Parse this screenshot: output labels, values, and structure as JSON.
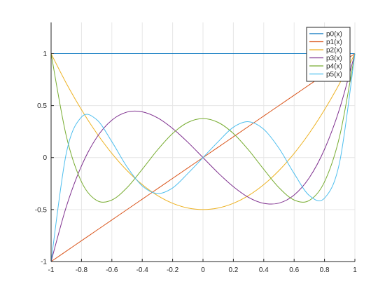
{
  "chart_data": {
    "type": "line",
    "title": "",
    "xlabel": "",
    "ylabel": "",
    "xlim": [
      -1,
      1
    ],
    "ylim": [
      -1,
      1.3
    ],
    "grid": true,
    "legend_position": "top-right",
    "xticks": [
      -1,
      -0.8,
      -0.6,
      -0.4,
      -0.2,
      0,
      0.2,
      0.4,
      0.6,
      0.8,
      1
    ],
    "xtick_labels": [
      "-1",
      "-0.8",
      "-0.6",
      "-0.4",
      "-0.2",
      "0",
      "0.2",
      "0.4",
      "0.6",
      "0.8",
      "1"
    ],
    "yticks": [
      -1,
      -0.5,
      0,
      0.5,
      1
    ],
    "ytick_labels": [
      "-1",
      "-0.5",
      "0",
      "0.5",
      "1"
    ],
    "x": [
      -1,
      -0.9,
      -0.8,
      -0.7,
      -0.6,
      -0.5,
      -0.4,
      -0.3,
      -0.2,
      -0.1,
      0,
      0.1,
      0.2,
      0.3,
      0.4,
      0.5,
      0.6,
      0.7,
      0.8,
      0.9,
      1
    ],
    "series": [
      {
        "name": "p0(x)",
        "color": "#0072BD",
        "values": [
          1,
          1,
          1,
          1,
          1,
          1,
          1,
          1,
          1,
          1,
          1,
          1,
          1,
          1,
          1,
          1,
          1,
          1,
          1,
          1,
          1
        ]
      },
      {
        "name": "p1(x)",
        "color": "#D95319",
        "values": [
          -1,
          -0.9,
          -0.8,
          -0.7,
          -0.6,
          -0.5,
          -0.4,
          -0.3,
          -0.2,
          -0.1,
          0,
          0.1,
          0.2,
          0.3,
          0.4,
          0.5,
          0.6,
          0.7,
          0.8,
          0.9,
          1
        ]
      },
      {
        "name": "p2(x)",
        "color": "#EDB120",
        "values": [
          1,
          0.715,
          0.46,
          0.235,
          0.04,
          -0.125,
          -0.26,
          -0.365,
          -0.44,
          -0.485,
          -0.5,
          -0.485,
          -0.44,
          -0.365,
          -0.26,
          -0.125,
          0.04,
          0.235,
          0.46,
          0.715,
          1
        ]
      },
      {
        "name": "p3(x)",
        "color": "#7E2F8E",
        "values": [
          -1,
          -0.473,
          -0.08,
          0.193,
          0.36,
          0.438,
          0.44,
          0.383,
          0.28,
          0.148,
          0,
          -0.148,
          -0.28,
          -0.383,
          -0.44,
          -0.438,
          -0.36,
          -0.193,
          0.08,
          0.473,
          1
        ]
      },
      {
        "name": "p4(x)",
        "color": "#77AC30",
        "values": [
          1,
          0.208,
          -0.233,
          -0.412,
          -0.408,
          -0.289,
          -0.113,
          0.073,
          0.232,
          0.338,
          0.375,
          0.338,
          0.232,
          0.073,
          -0.113,
          -0.289,
          -0.408,
          -0.412,
          -0.233,
          0.208,
          1
        ]
      },
      {
        "name": "p5(x)",
        "color": "#4DBEEE",
        "values": [
          -1,
          0.041,
          0.39,
          0.365,
          0.153,
          -0.09,
          -0.272,
          -0.345,
          -0.292,
          -0.153,
          0,
          0.153,
          0.292,
          0.345,
          0.272,
          0.09,
          -0.153,
          -0.365,
          -0.39,
          -0.041,
          1
        ]
      }
    ]
  }
}
